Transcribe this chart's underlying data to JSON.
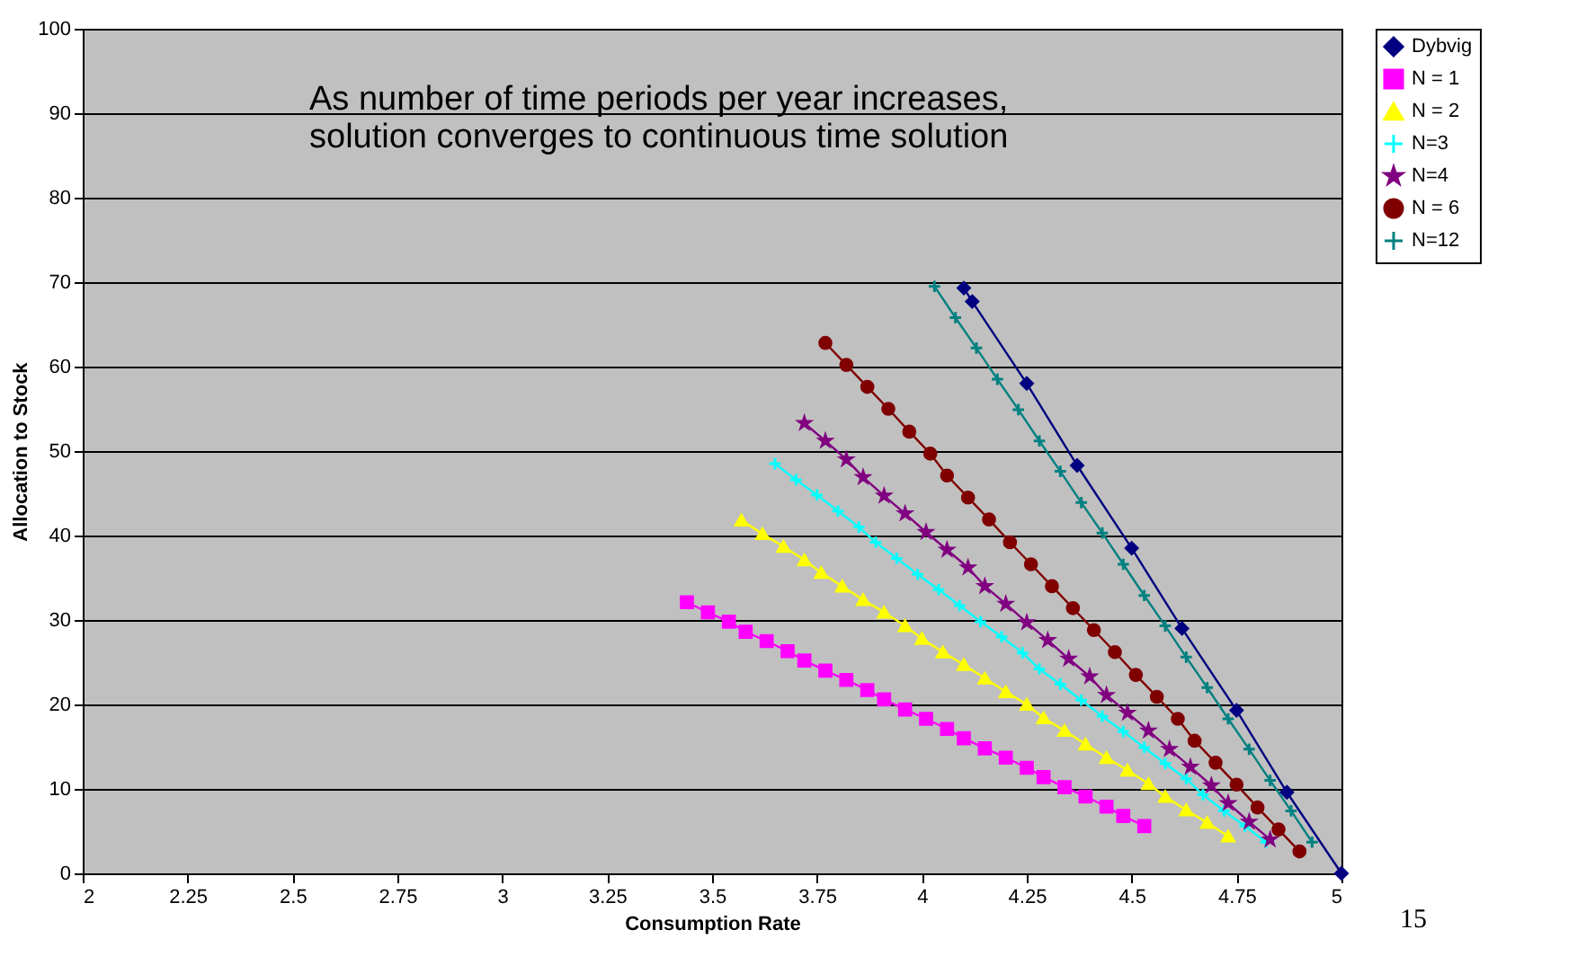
{
  "chart_data": {
    "type": "line",
    "xlabel": "Consumption Rate",
    "ylabel": "Allocation to Stock",
    "xlim": [
      2,
      5
    ],
    "xticks": [
      2,
      2.25,
      2.5,
      2.75,
      3,
      3.25,
      3.5,
      3.75,
      4,
      4.25,
      4.5,
      4.75,
      5
    ],
    "ylim": [
      0,
      100
    ],
    "yticks": [
      0,
      10,
      20,
      30,
      40,
      50,
      60,
      70,
      80,
      90,
      100
    ],
    "grid": "y",
    "legend": "right",
    "annotations": [
      "As number of time periods per year increases,\nsolution converges to continuous time solution",
      "15"
    ],
    "series": [
      {
        "name": "Dybvig",
        "color": "#000080",
        "marker": "diamond",
        "x": [
          4.1,
          4.12,
          4.25,
          4.37,
          4.5,
          4.62,
          4.75,
          4.87,
          5
        ],
        "values": [
          69.3,
          67.7,
          58.0,
          48.3,
          38.5,
          29.0,
          19.3,
          9.6,
          0
        ]
      },
      {
        "name": "N = 1",
        "color": "#ff00ff",
        "marker": "square",
        "x": [
          3.44,
          3.49,
          3.54,
          3.58,
          3.63,
          3.68,
          3.72,
          3.77,
          3.82,
          3.87,
          3.91,
          3.96,
          4.01,
          4.06,
          4.1,
          4.15,
          4.2,
          4.25,
          4.29,
          4.34,
          4.39,
          4.44,
          4.48,
          4.53
        ],
        "values": [
          32.1,
          30.9,
          29.8,
          28.6,
          27.5,
          26.3,
          25.2,
          24.0,
          22.9,
          21.7,
          20.6,
          19.4,
          18.3,
          17.1,
          16.0,
          14.8,
          13.7,
          12.5,
          11.4,
          10.2,
          9.1,
          7.9,
          6.8,
          5.6
        ]
      },
      {
        "name": "N = 2",
        "color": "#ffff00",
        "marker": "triangle",
        "x": [
          3.57,
          3.62,
          3.67,
          3.72,
          3.76,
          3.81,
          3.86,
          3.91,
          3.96,
          4.0,
          4.05,
          4.1,
          4.15,
          4.2,
          4.25,
          4.29,
          4.34,
          4.39,
          4.44,
          4.49,
          4.54,
          4.58,
          4.63,
          4.68,
          4.73
        ],
        "values": [
          41.8,
          40.2,
          38.7,
          37.1,
          35.6,
          34.0,
          32.4,
          30.9,
          29.3,
          27.8,
          26.2,
          24.7,
          23.1,
          21.5,
          20.0,
          18.4,
          16.9,
          15.3,
          13.7,
          12.2,
          10.6,
          9.1,
          7.5,
          6.0,
          4.4
        ]
      },
      {
        "name": "N=3",
        "color": "#00ffff",
        "marker": "cross",
        "x": [
          3.65,
          3.7,
          3.75,
          3.8,
          3.85,
          3.89,
          3.94,
          3.99,
          4.04,
          4.09,
          4.14,
          4.19,
          4.24,
          4.28,
          4.33,
          4.38,
          4.43,
          4.48,
          4.53,
          4.58,
          4.63,
          4.67,
          4.72,
          4.77,
          4.82
        ],
        "values": [
          48.5,
          46.6,
          44.8,
          42.9,
          41.0,
          39.2,
          37.3,
          35.4,
          33.6,
          31.7,
          29.8,
          28.0,
          26.1,
          24.2,
          22.4,
          20.5,
          18.6,
          16.8,
          14.9,
          13.0,
          11.2,
          9.3,
          7.4,
          5.6,
          3.7
        ]
      },
      {
        "name": "N=4",
        "color": "#800080",
        "marker": "star",
        "x": [
          3.72,
          3.77,
          3.82,
          3.86,
          3.91,
          3.96,
          4.01,
          4.06,
          4.11,
          4.15,
          4.2,
          4.25,
          4.3,
          4.35,
          4.4,
          4.44,
          4.49,
          4.54,
          4.59,
          4.64,
          4.69,
          4.73,
          4.78,
          4.83
        ],
        "values": [
          53.3,
          51.2,
          49.0,
          46.9,
          44.7,
          42.6,
          40.4,
          38.3,
          36.2,
          34.0,
          31.9,
          29.7,
          27.6,
          25.4,
          23.3,
          21.1,
          19.0,
          16.9,
          14.7,
          12.6,
          10.4,
          8.3,
          6.1,
          4.0
        ]
      },
      {
        "name": "N = 6",
        "color": "#800000",
        "marker": "circle",
        "x": [
          3.77,
          3.82,
          3.87,
          3.92,
          3.97,
          4.02,
          4.06,
          4.11,
          4.16,
          4.21,
          4.26,
          4.31,
          4.36,
          4.41,
          4.46,
          4.51,
          4.56,
          4.61,
          4.65,
          4.7,
          4.75,
          4.8,
          4.85,
          4.9
        ],
        "values": [
          62.8,
          60.2,
          57.6,
          55.0,
          52.3,
          49.7,
          47.1,
          44.5,
          41.9,
          39.2,
          36.6,
          34.0,
          31.4,
          28.8,
          26.2,
          23.5,
          20.9,
          18.3,
          15.7,
          13.1,
          10.5,
          7.8,
          5.2,
          2.6
        ]
      },
      {
        "name": "N=12",
        "color": "#008080",
        "marker": "cross",
        "x": [
          4.03,
          4.08,
          4.13,
          4.18,
          4.23,
          4.28,
          4.33,
          4.38,
          4.43,
          4.48,
          4.53,
          4.58,
          4.63,
          4.68,
          4.73,
          4.78,
          4.83,
          4.88,
          4.93
        ],
        "values": [
          69.5,
          65.8,
          62.2,
          58.5,
          54.9,
          51.2,
          47.6,
          43.9,
          40.3,
          36.6,
          32.9,
          29.3,
          25.6,
          22.0,
          18.3,
          14.7,
          11.0,
          7.4,
          3.7
        ]
      }
    ]
  }
}
